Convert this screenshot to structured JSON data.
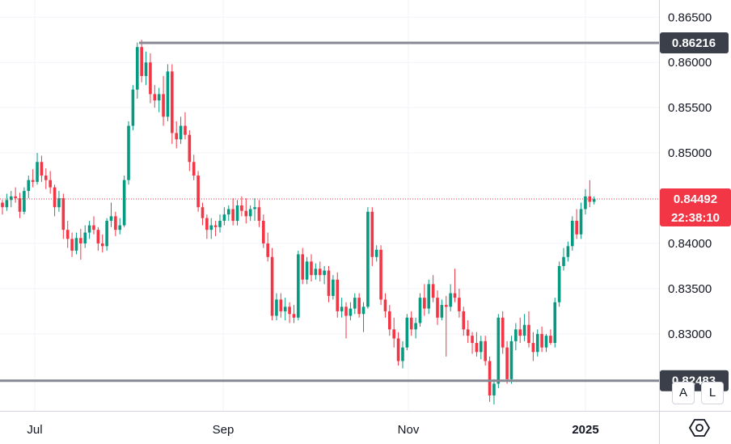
{
  "chart_data": {
    "type": "candlestick",
    "ylim": [
      0.8215,
      0.8669
    ],
    "y_ticks": [
      "0.86500",
      "0.86000",
      "0.85500",
      "0.85000",
      "0.84000",
      "0.83500",
      "0.83000"
    ],
    "x_ticks": [
      {
        "label": "Jul",
        "bold": false
      },
      {
        "label": "Sep",
        "bold": false
      },
      {
        "label": "Nov",
        "bold": false
      },
      {
        "label": "2025",
        "bold": true
      }
    ],
    "levels": [
      {
        "name": "resistance",
        "value": 0.86216,
        "label": "0.86216"
      },
      {
        "name": "support",
        "value": 0.82483,
        "label": "0.82483"
      }
    ],
    "current": {
      "value": 0.84492,
      "price_label": "0.84492",
      "countdown": "22:38:10"
    },
    "colors": {
      "up": "#089981",
      "down": "#f23645",
      "level": "#868993",
      "tag": "#3b3f4a",
      "current": "#f23645"
    },
    "candles": [
      [
        0.8445,
        0.8448,
        0.8432,
        0.844
      ],
      [
        0.844,
        0.8455,
        0.8436,
        0.8448
      ],
      [
        0.8448,
        0.8458,
        0.844,
        0.8452
      ],
      [
        0.8452,
        0.8462,
        0.8445,
        0.845
      ],
      [
        0.845,
        0.8456,
        0.8428,
        0.8435
      ],
      [
        0.8435,
        0.8462,
        0.8432,
        0.8458
      ],
      [
        0.8458,
        0.8475,
        0.845,
        0.847
      ],
      [
        0.847,
        0.8482,
        0.8462,
        0.8468
      ],
      [
        0.8468,
        0.85,
        0.8465,
        0.849
      ],
      [
        0.849,
        0.8497,
        0.8468,
        0.8475
      ],
      [
        0.8475,
        0.8483,
        0.846,
        0.847
      ],
      [
        0.847,
        0.848,
        0.8455,
        0.8462
      ],
      [
        0.8462,
        0.8465,
        0.843,
        0.844
      ],
      [
        0.844,
        0.8458,
        0.8435,
        0.845
      ],
      [
        0.845,
        0.8455,
        0.8405,
        0.8415
      ],
      [
        0.8415,
        0.8425,
        0.8395,
        0.8405
      ],
      [
        0.8405,
        0.8412,
        0.8385,
        0.8392
      ],
      [
        0.8392,
        0.8412,
        0.8388,
        0.8406
      ],
      [
        0.8406,
        0.8416,
        0.8382,
        0.84
      ],
      [
        0.84,
        0.842,
        0.8395,
        0.8412
      ],
      [
        0.8412,
        0.8425,
        0.8405,
        0.842
      ],
      [
        0.842,
        0.843,
        0.841,
        0.8415
      ],
      [
        0.8415,
        0.8418,
        0.8392,
        0.84
      ],
      [
        0.84,
        0.841,
        0.839,
        0.8397
      ],
      [
        0.8397,
        0.8428,
        0.8392,
        0.8425
      ],
      [
        0.8425,
        0.8445,
        0.8418,
        0.843
      ],
      [
        0.843,
        0.8435,
        0.8408,
        0.8415
      ],
      [
        0.8415,
        0.8428,
        0.841,
        0.842
      ],
      [
        0.842,
        0.8475,
        0.8418,
        0.847
      ],
      [
        0.847,
        0.8535,
        0.8465,
        0.853
      ],
      [
        0.853,
        0.8575,
        0.8525,
        0.857
      ],
      [
        0.857,
        0.8622,
        0.856,
        0.8617
      ],
      [
        0.8617,
        0.8625,
        0.8578,
        0.8585
      ],
      [
        0.8585,
        0.8612,
        0.8575,
        0.86
      ],
      [
        0.86,
        0.861,
        0.8555,
        0.8565
      ],
      [
        0.8565,
        0.8575,
        0.855,
        0.8558
      ],
      [
        0.8558,
        0.8572,
        0.8545,
        0.8565
      ],
      [
        0.8565,
        0.8585,
        0.853,
        0.854
      ],
      [
        0.854,
        0.8598,
        0.8535,
        0.859
      ],
      [
        0.859,
        0.8598,
        0.851,
        0.8522
      ],
      [
        0.8522,
        0.8535,
        0.8505,
        0.8515
      ],
      [
        0.8515,
        0.854,
        0.851,
        0.853
      ],
      [
        0.853,
        0.8545,
        0.8515,
        0.852
      ],
      [
        0.852,
        0.8525,
        0.848,
        0.849
      ],
      [
        0.849,
        0.8498,
        0.847,
        0.8475
      ],
      [
        0.8475,
        0.848,
        0.8435,
        0.844
      ],
      [
        0.844,
        0.8445,
        0.842,
        0.8428
      ],
      [
        0.8428,
        0.8432,
        0.8405,
        0.8415
      ],
      [
        0.8415,
        0.8428,
        0.8405,
        0.842
      ],
      [
        0.842,
        0.8425,
        0.8408,
        0.8418
      ],
      [
        0.8418,
        0.8432,
        0.8412,
        0.8425
      ],
      [
        0.8425,
        0.844,
        0.842,
        0.8432
      ],
      [
        0.8432,
        0.8442,
        0.8425,
        0.8438
      ],
      [
        0.8438,
        0.845,
        0.842,
        0.8425
      ],
      [
        0.8425,
        0.8448,
        0.842,
        0.8442
      ],
      [
        0.8442,
        0.8452,
        0.843,
        0.8436
      ],
      [
        0.8436,
        0.845,
        0.8422,
        0.843
      ],
      [
        0.843,
        0.8442,
        0.8425,
        0.8438
      ],
      [
        0.8438,
        0.845,
        0.8425,
        0.844
      ],
      [
        0.844,
        0.8448,
        0.8418,
        0.8425
      ],
      [
        0.8425,
        0.8432,
        0.8395,
        0.84
      ],
      [
        0.84,
        0.8412,
        0.838,
        0.8385
      ],
      [
        0.8385,
        0.8395,
        0.8315,
        0.832
      ],
      [
        0.832,
        0.8345,
        0.8315,
        0.8338
      ],
      [
        0.8338,
        0.8345,
        0.8318,
        0.8325
      ],
      [
        0.8325,
        0.834,
        0.8315,
        0.833
      ],
      [
        0.833,
        0.8335,
        0.8312,
        0.8322
      ],
      [
        0.8322,
        0.8332,
        0.8312,
        0.8318
      ],
      [
        0.8318,
        0.8392,
        0.8315,
        0.8388
      ],
      [
        0.8388,
        0.8395,
        0.8355,
        0.836
      ],
      [
        0.836,
        0.8385,
        0.8355,
        0.838
      ],
      [
        0.838,
        0.8388,
        0.8358,
        0.8365
      ],
      [
        0.8365,
        0.8378,
        0.836,
        0.8372
      ],
      [
        0.8372,
        0.838,
        0.8358,
        0.8365
      ],
      [
        0.8365,
        0.8375,
        0.8355,
        0.837
      ],
      [
        0.837,
        0.8375,
        0.8335,
        0.8342
      ],
      [
        0.8342,
        0.8365,
        0.8338,
        0.836
      ],
      [
        0.836,
        0.8368,
        0.8318,
        0.8325
      ],
      [
        0.8325,
        0.834,
        0.8318,
        0.833
      ],
      [
        0.833,
        0.8335,
        0.8295,
        0.832
      ],
      [
        0.832,
        0.8335,
        0.8315,
        0.8328
      ],
      [
        0.8328,
        0.8345,
        0.8322,
        0.834
      ],
      [
        0.834,
        0.8345,
        0.8318,
        0.8322
      ],
      [
        0.8322,
        0.8335,
        0.8302,
        0.833
      ],
      [
        0.833,
        0.844,
        0.8328,
        0.8435
      ],
      [
        0.8435,
        0.844,
        0.8375,
        0.8385
      ],
      [
        0.8385,
        0.8398,
        0.838,
        0.8393
      ],
      [
        0.8393,
        0.8398,
        0.8332,
        0.8338
      ],
      [
        0.8338,
        0.8345,
        0.8318,
        0.8325
      ],
      [
        0.8325,
        0.8332,
        0.8298,
        0.8305
      ],
      [
        0.8305,
        0.8318,
        0.8285,
        0.8295
      ],
      [
        0.8295,
        0.8302,
        0.8265,
        0.827
      ],
      [
        0.827,
        0.8292,
        0.8262,
        0.8285
      ],
      [
        0.8285,
        0.8322,
        0.8282,
        0.8318
      ],
      [
        0.8318,
        0.8325,
        0.8298,
        0.8305
      ],
      [
        0.8305,
        0.8318,
        0.8295,
        0.8312
      ],
      [
        0.8312,
        0.8345,
        0.8308,
        0.834
      ],
      [
        0.834,
        0.8355,
        0.832,
        0.8328
      ],
      [
        0.8328,
        0.836,
        0.8322,
        0.8355
      ],
      [
        0.8355,
        0.8365,
        0.8335,
        0.834
      ],
      [
        0.834,
        0.8348,
        0.831,
        0.8318
      ],
      [
        0.8318,
        0.8338,
        0.8315,
        0.8332
      ],
      [
        0.8332,
        0.8342,
        0.8275,
        0.833
      ],
      [
        0.833,
        0.8355,
        0.8325,
        0.8345
      ],
      [
        0.8345,
        0.8372,
        0.8335,
        0.834
      ],
      [
        0.834,
        0.835,
        0.8318,
        0.8325
      ],
      [
        0.8325,
        0.833,
        0.8298,
        0.8305
      ],
      [
        0.8305,
        0.8315,
        0.829,
        0.8298
      ],
      [
        0.8298,
        0.8302,
        0.8278,
        0.829
      ],
      [
        0.829,
        0.8302,
        0.8275,
        0.828
      ],
      [
        0.828,
        0.8298,
        0.8272,
        0.8292
      ],
      [
        0.8292,
        0.8298,
        0.8265,
        0.827
      ],
      [
        0.827,
        0.8275,
        0.8225,
        0.8232
      ],
      [
        0.8232,
        0.825,
        0.8222,
        0.8245
      ],
      [
        0.8245,
        0.8322,
        0.824,
        0.8318
      ],
      [
        0.8318,
        0.8325,
        0.8278,
        0.8285
      ],
      [
        0.8285,
        0.8292,
        0.8245,
        0.825
      ],
      [
        0.825,
        0.8298,
        0.8245,
        0.8292
      ],
      [
        0.8292,
        0.8312,
        0.8282,
        0.8305
      ],
      [
        0.8305,
        0.8318,
        0.829,
        0.8298
      ],
      [
        0.8298,
        0.8322,
        0.8292,
        0.831
      ],
      [
        0.831,
        0.8325,
        0.8285,
        0.829
      ],
      [
        0.829,
        0.8302,
        0.827,
        0.828
      ],
      [
        0.828,
        0.8305,
        0.8275,
        0.83
      ],
      [
        0.83,
        0.8308,
        0.828,
        0.8285
      ],
      [
        0.8285,
        0.83,
        0.828,
        0.8298
      ],
      [
        0.8298,
        0.8305,
        0.8288,
        0.829
      ],
      [
        0.829,
        0.834,
        0.8285,
        0.8335
      ],
      [
        0.8335,
        0.838,
        0.833,
        0.8375
      ],
      [
        0.8375,
        0.8395,
        0.837,
        0.8385
      ],
      [
        0.8385,
        0.8402,
        0.838,
        0.8397
      ],
      [
        0.8397,
        0.843,
        0.8392,
        0.8425
      ],
      [
        0.8425,
        0.8438,
        0.8405,
        0.841
      ],
      [
        0.841,
        0.8445,
        0.8405,
        0.8438
      ],
      [
        0.8438,
        0.846,
        0.8432,
        0.8452
      ],
      [
        0.8452,
        0.847,
        0.844,
        0.8446
      ],
      [
        0.8446,
        0.8452,
        0.8443,
        0.8449
      ]
    ]
  }
}
